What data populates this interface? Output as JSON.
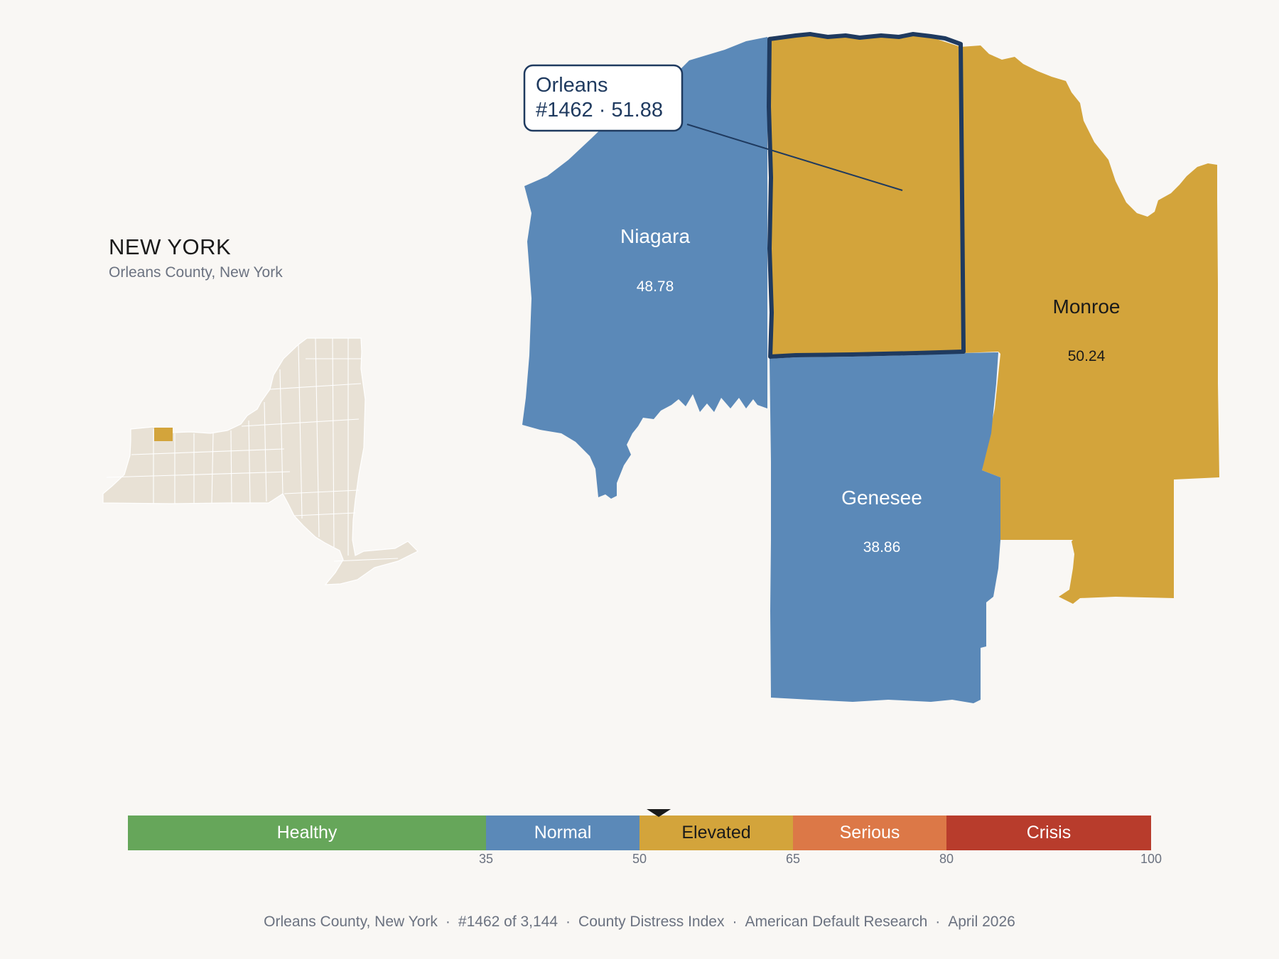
{
  "state": {
    "name": "NEW YORK",
    "subtitle": "Orleans County, New York"
  },
  "highlight_color": "#d3a43b",
  "counties": [
    {
      "name": "Niagara",
      "score": "48.78",
      "category": "Normal",
      "fill": "#5b89b8",
      "label_color": "#ffffff"
    },
    {
      "name": "Orleans",
      "score": "51.88",
      "category": "Elevated",
      "fill": "#d3a43b",
      "label_color": "#1a1a1a"
    },
    {
      "name": "Monroe",
      "score": "50.24",
      "category": "Elevated",
      "fill": "#d3a43b",
      "label_color": "#1a1a1a"
    },
    {
      "name": "Genesee",
      "score": "38.86",
      "category": "Normal",
      "fill": "#5b89b8",
      "label_color": "#ffffff"
    }
  ],
  "callout": {
    "line1": "Orleans",
    "line2": "#1462 · 51.88"
  },
  "scale": {
    "min": 0,
    "max": 100,
    "marker_value": 51.88,
    "bands": [
      {
        "label": "Healthy",
        "from": 0,
        "to": 35,
        "color": "#66a65a",
        "text_color": "#ffffff"
      },
      {
        "label": "Normal",
        "from": 35,
        "to": 50,
        "color": "#5b89b8",
        "text_color": "#ffffff"
      },
      {
        "label": "Elevated",
        "from": 50,
        "to": 65,
        "color": "#d3a43b",
        "text_color": "#1a1a1a"
      },
      {
        "label": "Serious",
        "from": 65,
        "to": 80,
        "color": "#dc7847",
        "text_color": "#ffffff"
      },
      {
        "label": "Crisis",
        "from": 80,
        "to": 100,
        "color": "#b83c2c",
        "text_color": "#ffffff"
      }
    ],
    "ticks": [
      "35",
      "50",
      "65",
      "80",
      "100"
    ]
  },
  "footer": {
    "county": "Orleans County, New York",
    "rank": "#1462 of 3,144",
    "index": "County Distress Index",
    "source": "American Default Research",
    "date": "April 2026"
  }
}
